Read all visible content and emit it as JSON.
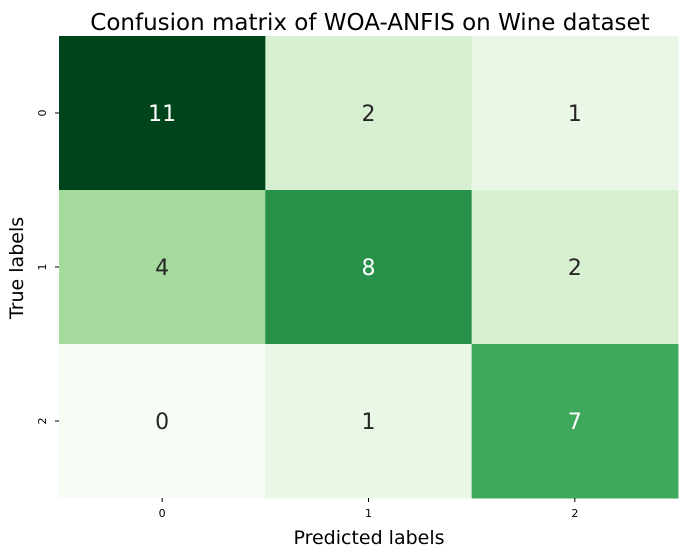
{
  "chart_data": {
    "type": "heatmap",
    "title": "Confusion matrix of WOA-ANFIS on Wine dataset",
    "xlabel": "Predicted labels",
    "ylabel": "True labels",
    "x_categories": [
      "0",
      "1",
      "2"
    ],
    "y_categories": [
      "0",
      "1",
      "2"
    ],
    "values": [
      [
        11,
        2,
        1
      ],
      [
        4,
        8,
        2
      ],
      [
        0,
        1,
        7
      ]
    ],
    "colormap": "Greens",
    "value_range": [
      0,
      11
    ],
    "colorbar": false,
    "annotated": true
  }
}
